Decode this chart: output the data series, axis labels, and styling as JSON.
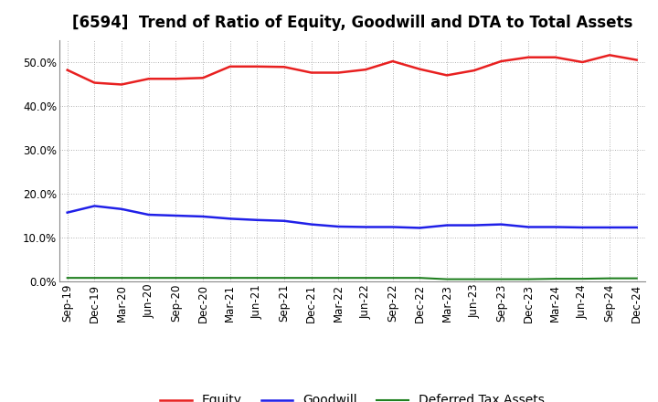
{
  "title": "[6594]  Trend of Ratio of Equity, Goodwill and DTA to Total Assets",
  "x_labels": [
    "Sep-19",
    "Dec-19",
    "Mar-20",
    "Jun-20",
    "Sep-20",
    "Dec-20",
    "Mar-21",
    "Jun-21",
    "Sep-21",
    "Dec-21",
    "Mar-22",
    "Jun-22",
    "Sep-22",
    "Dec-22",
    "Mar-23",
    "Jun-23",
    "Sep-23",
    "Dec-23",
    "Mar-24",
    "Jun-24",
    "Sep-24",
    "Dec-24"
  ],
  "equity": [
    0.482,
    0.453,
    0.449,
    0.462,
    0.462,
    0.464,
    0.49,
    0.49,
    0.489,
    0.476,
    0.476,
    0.483,
    0.502,
    0.484,
    0.47,
    0.481,
    0.502,
    0.511,
    0.511,
    0.5,
    0.516,
    0.505
  ],
  "goodwill": [
    0.157,
    0.172,
    0.165,
    0.152,
    0.15,
    0.148,
    0.143,
    0.14,
    0.138,
    0.13,
    0.125,
    0.124,
    0.124,
    0.122,
    0.128,
    0.128,
    0.13,
    0.124,
    0.124,
    0.123,
    0.123,
    0.123
  ],
  "dta": [
    0.008,
    0.008,
    0.008,
    0.008,
    0.008,
    0.008,
    0.008,
    0.008,
    0.008,
    0.008,
    0.008,
    0.008,
    0.008,
    0.008,
    0.005,
    0.005,
    0.005,
    0.005,
    0.006,
    0.006,
    0.007,
    0.007
  ],
  "equity_color": "#e82020",
  "goodwill_color": "#2020e8",
  "dta_color": "#208020",
  "background_color": "#ffffff",
  "plot_bg_color": "#ffffff",
  "grid_color": "#999999",
  "ylim": [
    0.0,
    0.55
  ],
  "yticks": [
    0.0,
    0.1,
    0.2,
    0.3,
    0.4,
    0.5
  ],
  "legend_labels": [
    "Equity",
    "Goodwill",
    "Deferred Tax Assets"
  ],
  "title_fontsize": 12,
  "tick_fontsize": 8.5,
  "legend_fontsize": 10
}
